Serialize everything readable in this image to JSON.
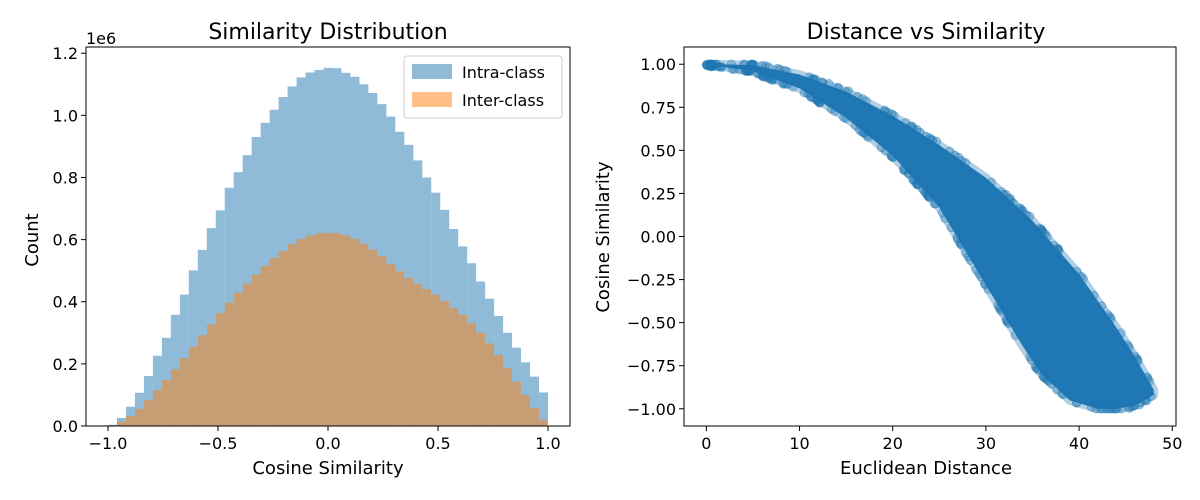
{
  "chart_data": [
    {
      "type": "histogram",
      "title": "Similarity Distribution",
      "xlabel": "Cosine Similarity",
      "ylabel": "Count",
      "y_offset_label": "1e6",
      "xlim": [
        -1.1,
        1.1
      ],
      "ylim": [
        0,
        1.22
      ],
      "x_ticks": [
        -1.0,
        -0.5,
        0.0,
        0.5,
        1.0
      ],
      "x_tick_labels": [
        "−1.0",
        "−0.5",
        "0.0",
        "0.5",
        "1.0"
      ],
      "y_ticks": [
        0,
        0.2,
        0.4,
        0.6,
        0.8,
        1.0,
        1.2
      ],
      "y_tick_labels": [
        "0.0",
        "0.2",
        "0.4",
        "0.6",
        "0.8",
        "1.0",
        "1.2"
      ],
      "bin_range": [
        -1.0,
        1.0
      ],
      "legend_position": "upper right",
      "series": [
        {
          "name": "Intra-class",
          "color": "#1f77b4",
          "alpha": 0.5,
          "values": [
            0.004,
            0.026,
            0.062,
            0.107,
            0.161,
            0.226,
            0.284,
            0.358,
            0.423,
            0.501,
            0.567,
            0.637,
            0.694,
            0.767,
            0.817,
            0.872,
            0.93,
            0.976,
            1.018,
            1.059,
            1.093,
            1.122,
            1.138,
            1.146,
            1.153,
            1.152,
            1.137,
            1.124,
            1.1,
            1.072,
            1.036,
            0.996,
            0.947,
            0.905,
            0.855,
            0.8,
            0.751,
            0.696,
            0.634,
            0.578,
            0.524,
            0.465,
            0.41,
            0.354,
            0.3,
            0.252,
            0.205,
            0.159,
            0.108
          ]
        },
        {
          "name": "Inter-class",
          "color": "#ff7f0e",
          "alpha": 0.5,
          "values": [
            0.002,
            0.014,
            0.032,
            0.055,
            0.083,
            0.115,
            0.148,
            0.183,
            0.218,
            0.255,
            0.292,
            0.327,
            0.363,
            0.397,
            0.429,
            0.458,
            0.487,
            0.516,
            0.541,
            0.563,
            0.585,
            0.601,
            0.613,
            0.62,
            0.622,
            0.621,
            0.614,
            0.603,
            0.587,
            0.568,
            0.546,
            0.522,
            0.498,
            0.476,
            0.457,
            0.44,
            0.423,
            0.403,
            0.381,
            0.358,
            0.331,
            0.3,
            0.266,
            0.228,
            0.186,
            0.143,
            0.1,
            0.058,
            0.02
          ]
        }
      ]
    },
    {
      "type": "scatter",
      "title": "Distance vs Similarity",
      "xlabel": "Euclidean Distance",
      "ylabel": "Cosine Similarity",
      "xlim": [
        -2.4,
        50.4
      ],
      "ylim": [
        -1.1,
        1.1
      ],
      "x_ticks": [
        0,
        10,
        20,
        30,
        40,
        50
      ],
      "x_tick_labels": [
        "0",
        "10",
        "20",
        "30",
        "40",
        "50"
      ],
      "y_ticks": [
        -1.0,
        -0.75,
        -0.5,
        -0.25,
        0.0,
        0.25,
        0.5,
        0.75,
        1.0
      ],
      "y_tick_labels": [
        "−1.00",
        "−0.75",
        "−0.50",
        "−0.25",
        "0.00",
        "0.25",
        "0.50",
        "0.75",
        "1.00"
      ],
      "color": "#1f77b4",
      "alpha": 0.3,
      "x_range": [
        0,
        48
      ],
      "y_range": [
        -1.0,
        1.0
      ],
      "relation": "cosine similarity decreases as Euclidean distance increases; dense band from (0, 1.00) down to approximately (44, -1.00)"
    }
  ]
}
